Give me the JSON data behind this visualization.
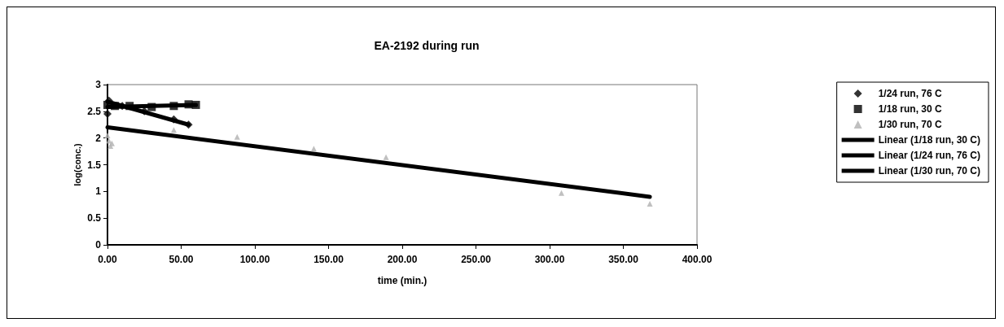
{
  "chart_data": {
    "type": "scatter",
    "title": "EA-2192 during run",
    "xlabel": "time (min.)",
    "ylabel": "log(conc.)",
    "xlim": [
      0,
      400
    ],
    "xticks": [
      {
        "value": 0,
        "label": "0.00"
      },
      {
        "value": 50,
        "label": "50.00"
      },
      {
        "value": 100,
        "label": "100.00"
      },
      {
        "value": 150,
        "label": "150.00"
      },
      {
        "value": 200,
        "label": "200.00"
      },
      {
        "value": 250,
        "label": "250.00"
      },
      {
        "value": 300,
        "label": "300.00"
      },
      {
        "value": 350,
        "label": "350.00"
      },
      {
        "value": 400,
        "label": "400.00"
      }
    ],
    "ylim": [
      0,
      3
    ],
    "yticks": [
      0,
      0.5,
      1,
      1.5,
      2,
      2.5,
      3
    ],
    "grid": false,
    "legend": "right",
    "series": [
      {
        "name": "1/24 run, 76 C",
        "marker": "diamond",
        "color": "#000000",
        "x": [
          0,
          1,
          10,
          25,
          45,
          55
        ],
        "values": [
          2.45,
          2.7,
          2.6,
          2.5,
          2.35,
          2.25
        ]
      },
      {
        "name": "1/18 run, 30 C",
        "marker": "square",
        "color": "#000000",
        "x": [
          0,
          5,
          15,
          30,
          45,
          55,
          60
        ],
        "values": [
          2.62,
          2.6,
          2.6,
          2.58,
          2.6,
          2.63,
          2.62
        ]
      },
      {
        "name": "1/30 run, 70 C",
        "marker": "triangle",
        "color": "#b0b0b0",
        "x": [
          0,
          1,
          2,
          3,
          45,
          88,
          140,
          189,
          308,
          368
        ],
        "values": [
          2.05,
          1.95,
          1.85,
          1.9,
          2.15,
          2.02,
          1.8,
          1.64,
          0.97,
          0.77
        ]
      },
      {
        "name": "Linear (1/18 run, 30 C)",
        "type": "line",
        "marker": "none",
        "color": "#000000",
        "x": [
          0,
          60
        ],
        "values": [
          2.58,
          2.62
        ]
      },
      {
        "name": "Linear (1/24 run, 76 C)",
        "type": "line",
        "marker": "none",
        "color": "#000000",
        "x": [
          0,
          55
        ],
        "values": [
          2.68,
          2.25
        ]
      },
      {
        "name": "Linear (1/30 run, 70 C)",
        "type": "line",
        "marker": "none",
        "color": "#000000",
        "x": [
          0,
          368
        ],
        "values": [
          2.2,
          0.9
        ]
      }
    ]
  }
}
